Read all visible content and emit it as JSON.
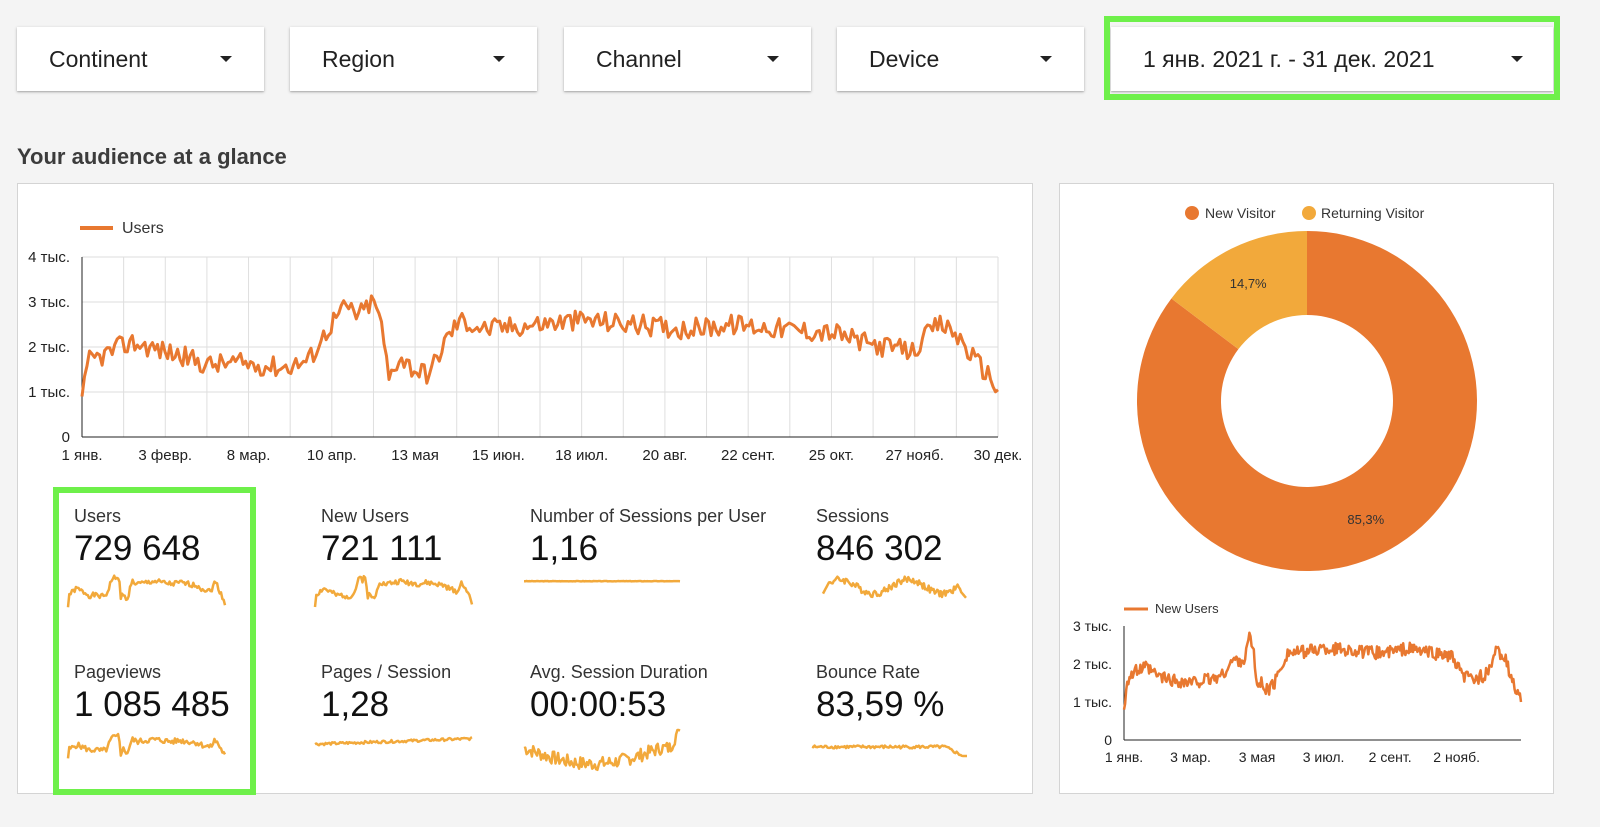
{
  "filters": [
    {
      "label": "Continent"
    },
    {
      "label": "Region"
    },
    {
      "label": "Channel"
    },
    {
      "label": "Device"
    },
    {
      "label": "1 янв. 2021 г. - 31 дек. 2021"
    }
  ],
  "section_title": "Your audience at a glance",
  "metrics": [
    {
      "label": "Users",
      "value": "729 648"
    },
    {
      "label": "New Users",
      "value": "721 111"
    },
    {
      "label": "Number of Sessions per User",
      "value": "1,16"
    },
    {
      "label": "Sessions",
      "value": "846 302"
    },
    {
      "label": "Pageviews",
      "value": "1 085 485"
    },
    {
      "label": "Pages / Session",
      "value": "1,28"
    },
    {
      "label": "Avg. Session Duration",
      "value": "00:00:53"
    },
    {
      "label": "Bounce Rate",
      "value": "83,59 %"
    }
  ],
  "colors": {
    "orange": "#e87830",
    "light_orange": "#f2a93b",
    "highlight": "#6ef04a"
  },
  "chart_data": [
    {
      "type": "line",
      "series": [
        {
          "name": "Users"
        }
      ],
      "y_tick_labels": [
        "0",
        "1 тыс.",
        "2 тыс.",
        "3 тыс.",
        "4 тыс."
      ],
      "x_tick_labels": [
        "1 янв.",
        "3 февр.",
        "8 мар.",
        "10 апр.",
        "13 мая",
        "15 июн.",
        "18 июл.",
        "20 авг.",
        "22 сент.",
        "25 окт.",
        "27 нояб.",
        "30 дек."
      ],
      "ylim": [
        0,
        4000
      ],
      "grid": true,
      "legend": "top-left",
      "control_points": [
        [
          0,
          900
        ],
        [
          3,
          1700
        ],
        [
          8,
          1800
        ],
        [
          15,
          2000
        ],
        [
          20,
          2100
        ],
        [
          30,
          1950
        ],
        [
          40,
          1800
        ],
        [
          50,
          1600
        ],
        [
          60,
          1650
        ],
        [
          70,
          1600
        ],
        [
          80,
          1550
        ],
        [
          90,
          1700
        ],
        [
          100,
          2600
        ],
        [
          105,
          2900
        ],
        [
          110,
          2700
        ],
        [
          115,
          3000
        ],
        [
          118,
          2800
        ],
        [
          122,
          1300
        ],
        [
          126,
          1800
        ],
        [
          132,
          1500
        ],
        [
          138,
          1400
        ],
        [
          145,
          2200
        ],
        [
          150,
          2600
        ],
        [
          160,
          2400
        ],
        [
          180,
          2500
        ],
        [
          200,
          2600
        ],
        [
          220,
          2500
        ],
        [
          240,
          2400
        ],
        [
          260,
          2500
        ],
        [
          280,
          2400
        ],
        [
          300,
          2300
        ],
        [
          310,
          2100
        ],
        [
          320,
          2000
        ],
        [
          330,
          1900
        ],
        [
          335,
          2200
        ],
        [
          340,
          2500
        ],
        [
          345,
          2400
        ],
        [
          350,
          2100
        ],
        [
          355,
          1700
        ],
        [
          360,
          1400
        ],
        [
          364,
          1050
        ]
      ]
    },
    {
      "type": "pie",
      "categories": [
        "New Visitor",
        "Returning Visitor"
      ],
      "values": [
        85.3,
        14.7
      ],
      "data_labels": [
        "85,3%",
        "14,7%"
      ],
      "legend": "top-center"
    },
    {
      "type": "line",
      "series": [
        {
          "name": "New Users"
        }
      ],
      "y_tick_labels": [
        "0",
        "1 тыс.",
        "2 тыс.",
        "3 тыс."
      ],
      "x_tick_labels": [
        "1 янв.",
        "3 мар.",
        "3 мая",
        "3 июл.",
        "2 сент.",
        "2 нояб."
      ],
      "ylim": [
        0,
        3000
      ],
      "grid": false,
      "legend": "top-left",
      "control_points": [
        [
          0,
          800
        ],
        [
          3,
          1600
        ],
        [
          10,
          1800
        ],
        [
          20,
          1900
        ],
        [
          30,
          1700
        ],
        [
          40,
          1600
        ],
        [
          50,
          1550
        ],
        [
          60,
          1500
        ],
        [
          70,
          1550
        ],
        [
          80,
          1600
        ],
        [
          90,
          1700
        ],
        [
          100,
          2100
        ],
        [
          110,
          2100
        ],
        [
          115,
          2700
        ],
        [
          118,
          2500
        ],
        [
          122,
          1400
        ],
        [
          126,
          1500
        ],
        [
          132,
          1300
        ],
        [
          138,
          1500
        ],
        [
          145,
          2000
        ],
        [
          150,
          2300
        ],
        [
          160,
          2300
        ],
        [
          180,
          2400
        ],
        [
          200,
          2400
        ],
        [
          220,
          2300
        ],
        [
          240,
          2300
        ],
        [
          260,
          2400
        ],
        [
          280,
          2300
        ],
        [
          300,
          2200
        ],
        [
          310,
          1700
        ],
        [
          320,
          1600
        ],
        [
          330,
          1700
        ],
        [
          335,
          1800
        ],
        [
          340,
          2300
        ],
        [
          345,
          2300
        ],
        [
          350,
          2100
        ],
        [
          355,
          1600
        ],
        [
          360,
          1300
        ],
        [
          364,
          1000
        ]
      ]
    }
  ]
}
